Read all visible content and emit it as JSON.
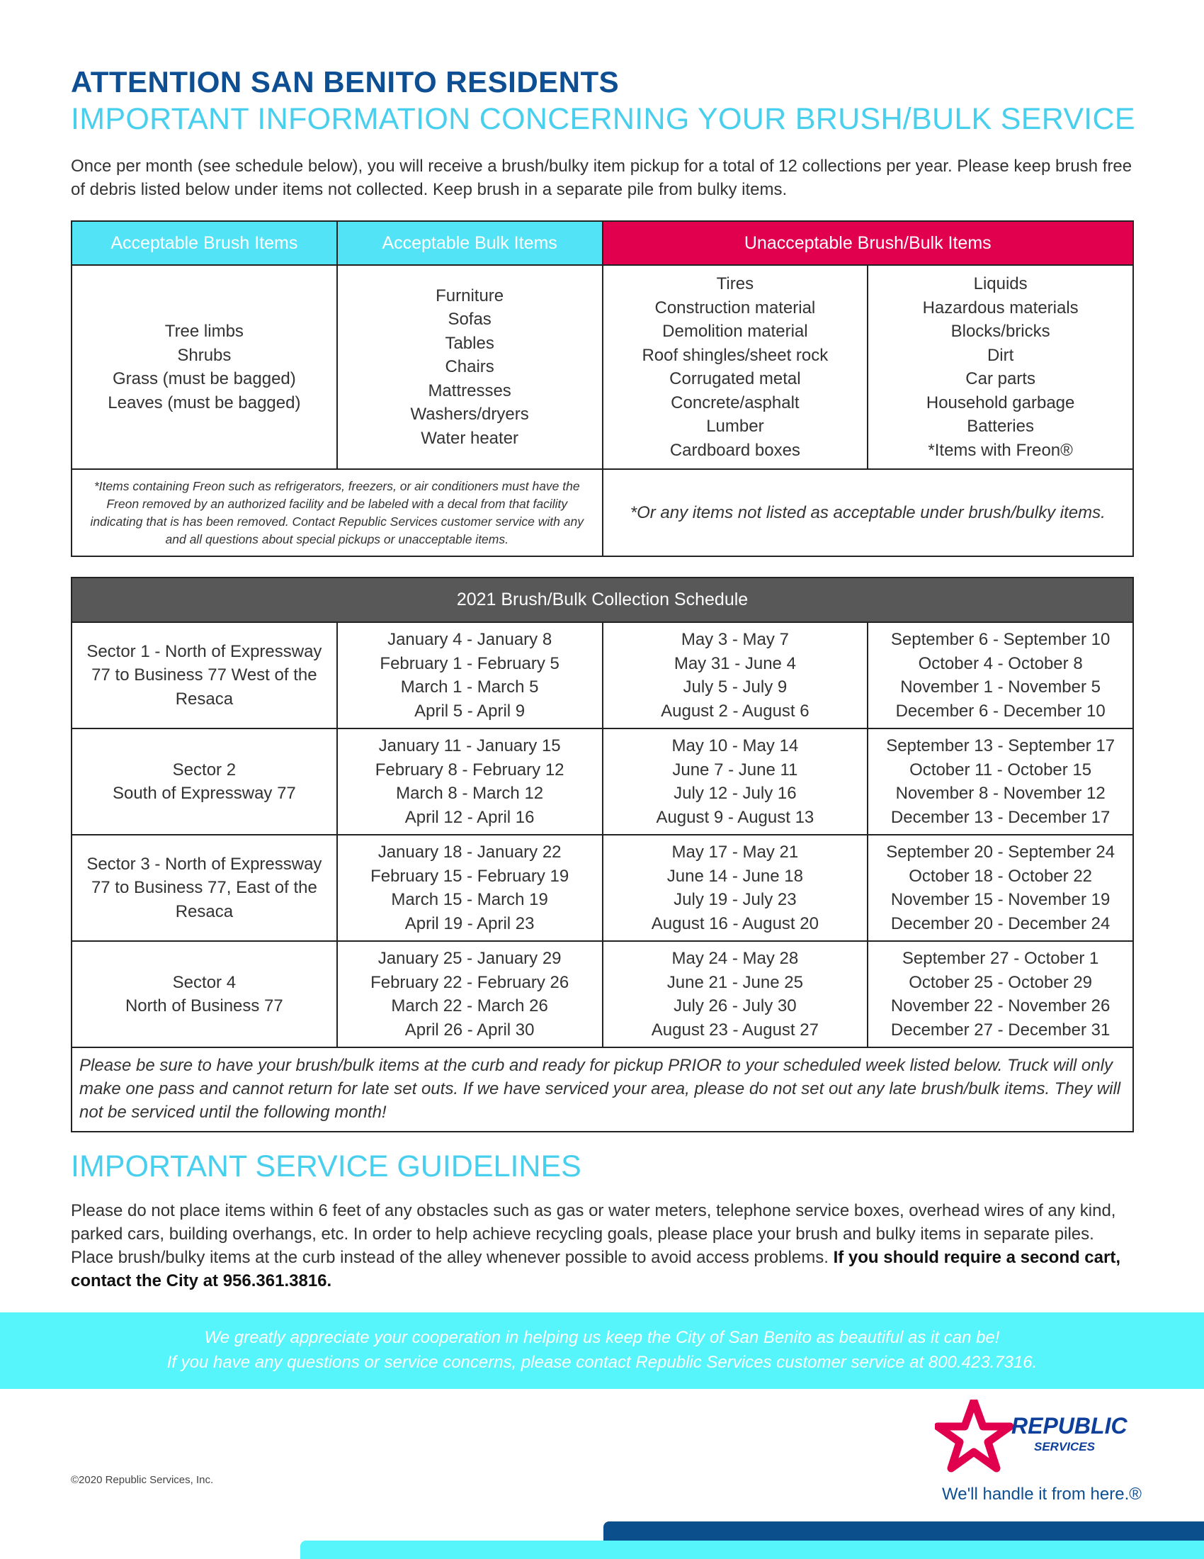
{
  "header": {
    "title": "ATTENTION SAN BENITO RESIDENTS",
    "subtitle": "IMPORTANT INFORMATION CONCERNING YOUR BRUSH/BULK SERVICE",
    "intro": "Once per month (see schedule below), you will receive a brush/bulky item pickup for a total of 12 collections per year. Please keep brush free of debris listed below under items not collected. Keep brush in a separate pile from bulky items."
  },
  "items_table": {
    "headers": [
      "Acceptable Brush Items",
      "Acceptable Bulk Items",
      "Unacceptable Brush/Bulk Items"
    ],
    "brush": [
      "Tree limbs",
      "Shrubs",
      "Grass (must be bagged)",
      "Leaves (must be bagged)"
    ],
    "bulk": [
      "Furniture",
      "Sofas",
      "Tables",
      "Chairs",
      "Mattresses",
      "Washers/dryers",
      "Water heater"
    ],
    "unacceptable_1": [
      "Tires",
      "Construction material",
      "Demolition material",
      "Roof shingles/sheet rock",
      "Corrugated metal",
      "Concrete/asphalt",
      "Lumber",
      "Cardboard boxes"
    ],
    "unacceptable_2": [
      "Liquids",
      "Hazardous materials",
      "Blocks/bricks",
      "Dirt",
      "Car parts",
      "Household garbage",
      "Batteries",
      "*Items with Freon®"
    ],
    "freon_note": "*Items containing Freon such as refrigerators, freezers, or air conditioners must have the Freon removed by an authorized facility and be labeled with a decal from that facility indicating that is has been removed. Contact Republic Services customer service with any and all questions about special pickups or unacceptable items.",
    "other_note": "*Or any items not listed as acceptable under brush/bulky items."
  },
  "schedule": {
    "title": "2021 Brush/Bulk Collection Schedule",
    "rows": [
      {
        "sector": [
          "Sector 1 - North of Expressway",
          "77 to Business 77 West of the",
          "Resaca"
        ],
        "periods": [
          [
            "January 4 - January 8",
            "February 1 - February 5",
            "March 1 - March 5",
            "April 5 - April 9"
          ],
          [
            "May 3 - May 7",
            "May 31 - June 4",
            "July 5 - July 9",
            "August 2 - August 6"
          ],
          [
            "September 6 - September 10",
            "October 4 - October 8",
            "November 1 - November 5",
            "December 6 - December 10"
          ]
        ]
      },
      {
        "sector": [
          "Sector 2",
          "South of Expressway 77"
        ],
        "periods": [
          [
            "January 11 - January 15",
            "February 8 - February 12",
            "March 8 - March 12",
            "April 12 - April 16"
          ],
          [
            "May 10 - May 14",
            "June 7 - June 11",
            "July 12 - July 16",
            "August 9 - August 13"
          ],
          [
            "September 13 - September 17",
            "October 11 - October 15",
            "November 8 - November 12",
            "December 13 - December 17"
          ]
        ]
      },
      {
        "sector": [
          "Sector 3 - North of Expressway",
          "77 to Business 77, East of the",
          "Resaca"
        ],
        "periods": [
          [
            "January 18 - January 22",
            "February 15 - February 19",
            "March 15 - March 19",
            "April 19 - April 23"
          ],
          [
            "May 17 - May 21",
            "June 14 - June 18",
            "July 19 - July 23",
            "August 16 - August 20"
          ],
          [
            "September 20 - September 24",
            "October 18 - October 22",
            "November 15 - November 19",
            "December 20 - December 24"
          ]
        ]
      },
      {
        "sector": [
          "Sector 4",
          "North of Business 77"
        ],
        "periods": [
          [
            "January 25 - January 29",
            "February 22 - February 26",
            "March 22 - March 26",
            "April 26 - April 30"
          ],
          [
            "May 24 - May 28",
            "June 21 - June 25",
            "July 26 - July 30",
            "August 23 - August 27"
          ],
          [
            "September 27 - October 1",
            "October 25 - October 29",
            "November 22 - November 26",
            "December 27 - December 31"
          ]
        ]
      }
    ],
    "note": "Please be sure to have your brush/bulk items at the curb and ready for pickup PRIOR to your scheduled week listed below. Truck will only make one pass and cannot return for late set outs. If we have serviced your area, please do not set out any late brush/bulk items. They will not be serviced until the following month!"
  },
  "guidelines": {
    "title": "IMPORTANT SERVICE GUIDELINES",
    "body": "Please do not place items within 6 feet of any obstacles such as gas or water meters, telephone service boxes, overhead wires of any kind, parked cars, building overhangs, etc. In order to help achieve recycling goals, please place your brush and bulky items in separate piles. Place brush/bulky items at the curb instead of the alley whenever possible to avoid access problems. ",
    "body_bold": "If you should require a second cart, contact the City at 956.361.3816."
  },
  "banner": {
    "line1": "We greatly appreciate your cooperation in helping us keep the City of San Benito as beautiful as it can be!",
    "line2": "If you have any questions or service concerns, please contact Republic Services customer service at 800.423.7316."
  },
  "footer": {
    "copyright": "©2020 Republic Services, Inc.",
    "logo_text": "REPUBLIC",
    "logo_sub": "SERVICES",
    "tagline": "We'll handle it from here.®"
  },
  "colors": {
    "title_blue": "#0e4f93",
    "accent_cyan": "#48cfee",
    "header_cyan": "#52e3f6",
    "unacceptable_red": "#e0004d",
    "schedule_header_gray": "#585858",
    "logo_red": "#e0004d"
  }
}
